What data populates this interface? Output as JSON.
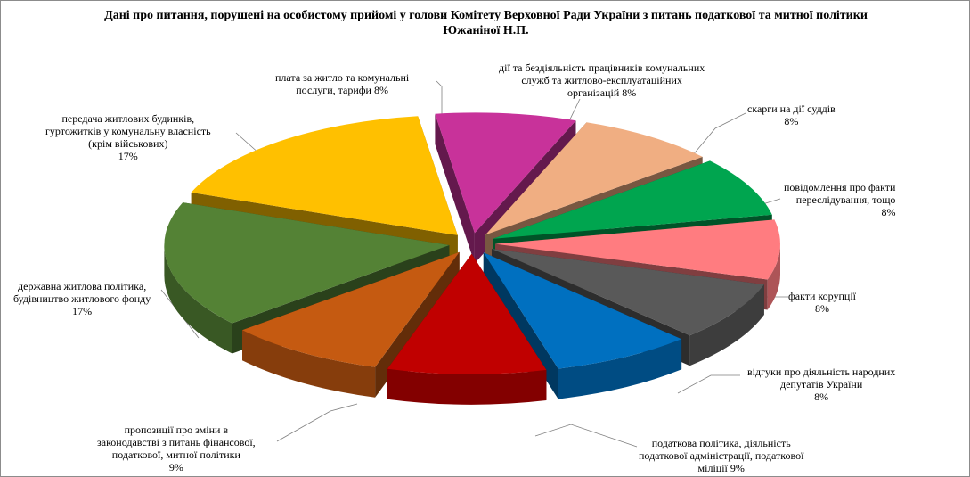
{
  "chart_data": {
    "type": "pie",
    "title": [
      "Дані про питання, порушені на особистому прийомі у голови Комітету Верховної Ради України з питань податкової та митної політики",
      "Южаніної Н.П."
    ],
    "slices": [
      {
        "name": "плата за житло та комунальні послуги, тарифи",
        "value": 8,
        "label": [
          "плата за житло  та комунальні",
          "послуги, тарифи 8%"
        ],
        "color": "#c8329a"
      },
      {
        "name": "дії та бездіяльність працівників комунальних служб та житлово-експлуатаційних організацій",
        "value": 8,
        "label": [
          "дії  та бездіяльність  працівників  комунальних",
          "служб та житлово-експлуатаційних",
          "організацій  8%"
        ],
        "color": "#f0ae82"
      },
      {
        "name": "скарги на дії суддів",
        "value": 8,
        "label": [
          "скарги на дії  суддів",
          "8%"
        ],
        "color": "#00a54f"
      },
      {
        "name": "повідомлення про факти переслідування, тощо",
        "value": 8,
        "label": [
          "повідомлення  про факти",
          "переслідування,  тощо",
          "8%"
        ],
        "color": "#ff7c80"
      },
      {
        "name": "факти корупції",
        "value": 8,
        "label": [
          "факти корупції",
          "8%"
        ],
        "color": "#595959"
      },
      {
        "name": "відгуки про діяльність народних депутатів України",
        "value": 8,
        "label": [
          "відгуки  про діяльність  народних",
          "депутатів  України",
          "8%"
        ],
        "color": "#0070c0"
      },
      {
        "name": "податкова політика, діяльність податкової адміністрації, податкової міліції",
        "value": 9,
        "label": [
          "податкова політика,  діяльність",
          "податкової адміністрації,  податкової",
          "міліції  9%"
        ],
        "color": "#c00000"
      },
      {
        "name": "пропозиції про зміни в законодавстві з питань фінансової, податкової, митної політики",
        "value": 9,
        "label": [
          "пропозиції  про зміни в",
          "законодавстві  з питань фінансової,",
          "податкової,  митної політики",
          "9%"
        ],
        "color": "#c55a11"
      },
      {
        "name": "державна житлова політика, будівництво житлового фонду",
        "value": 17,
        "label": [
          "державна житлова політика,",
          "будівництво  житлового  фонду",
          "17%"
        ],
        "color": "#548235"
      },
      {
        "name": "передача житлових будинків, гуртожитків у комунальну власність (крім військових)",
        "value": 17,
        "label": [
          "передача житлових  будинків,",
          "гуртожитків  у комунальну власність",
          "(крім військових)",
          "17%"
        ],
        "color": "#ffc000"
      }
    ]
  }
}
